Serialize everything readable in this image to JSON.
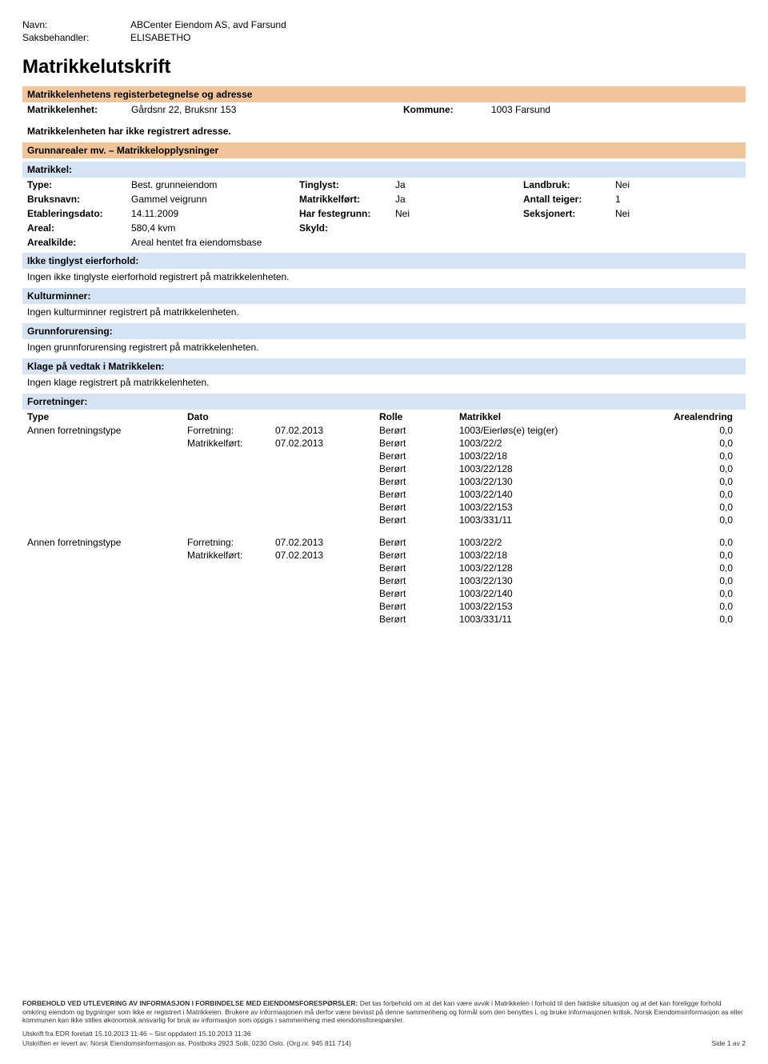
{
  "colors": {
    "orange_band": "#f2c49a",
    "blue_band": "#d4e4f4",
    "text": "#000000",
    "background": "#ffffff"
  },
  "header": {
    "navn_label": "Navn:",
    "navn_value": "ABCenter Eiendom AS, avd Farsund",
    "saks_label": "Saksbehandler:",
    "saks_value": "ELISABETHO"
  },
  "title": "Matrikkelutskrift",
  "reg": {
    "band": "Matrikkelenhetens registerbetegnelse og adresse",
    "enhet_label": "Matrikkelenhet:",
    "enhet_value": "Gårdsnr 22, Bruksnr 153",
    "kommune_label": "Kommune:",
    "kommune_value": "1003  Farsund",
    "no_address": "Matrikkelenheten har ikke registrert adresse."
  },
  "grunn": {
    "band": "Grunnarealer mv. – Matrikkelopplysninger",
    "matrikkel_label": "Matrikkel:",
    "rows": [
      {
        "a_lbl": "Type:",
        "a_val": "Best. grunneiendom",
        "b_lbl": "Tinglyst:",
        "b_val": "Ja",
        "c_lbl": "Landbruk:",
        "c_val": "Nei"
      },
      {
        "a_lbl": "Bruksnavn:",
        "a_val": "Gammel veigrunn",
        "b_lbl": "Matrikkelført:",
        "b_val": "Ja",
        "c_lbl": "Antall teiger:",
        "c_val": "1"
      },
      {
        "a_lbl": "Etableringsdato:",
        "a_val": "14.11.2009",
        "b_lbl": "Har festegrunn:",
        "b_val": "Nei",
        "c_lbl": "Seksjonert:",
        "c_val": "Nei"
      },
      {
        "a_lbl": "Areal:",
        "a_val": "580,4 kvm",
        "b_lbl": "Skyld:",
        "b_val": "",
        "c_lbl": "",
        "c_val": ""
      },
      {
        "a_lbl": "Arealkilde:",
        "a_val": "Areal hentet fra eiendomsbase",
        "b_lbl": "",
        "b_val": "",
        "c_lbl": "",
        "c_val": ""
      }
    ]
  },
  "sections": [
    {
      "title": "Ikke tinglyst eierforhold:",
      "body": "Ingen ikke tinglyste eierforhold registrert på matrikkelenheten."
    },
    {
      "title": "Kulturminner:",
      "body": "Ingen kulturminner registrert på matrikkelenheten."
    },
    {
      "title": "Grunnforurensing:",
      "body": "Ingen grunnforurensing registrert på matrikkelenheten."
    },
    {
      "title": "Klage på vedtak i Matrikkelen:",
      "body": "Ingen klage registrert på matrikkelenheten."
    }
  ],
  "forretninger": {
    "band": "Forretninger:",
    "headers": {
      "type": "Type",
      "dato": "Dato",
      "rolle": "Rolle",
      "matrikkel": "Matrikkel",
      "areal": "Arealendring"
    },
    "groups": [
      {
        "type": "Annen forretningstype",
        "dato_rows": [
          {
            "lbl": "Forretning:",
            "val": "07.02.2013"
          },
          {
            "lbl": "Matrikkelført:",
            "val": "07.02.2013"
          }
        ],
        "entries": [
          {
            "rolle": "Berørt",
            "matrikkel": "1003/Eierløs(e) teig(er)",
            "areal": "0,0"
          },
          {
            "rolle": "Berørt",
            "matrikkel": "1003/22/2",
            "areal": "0,0"
          },
          {
            "rolle": "Berørt",
            "matrikkel": "1003/22/18",
            "areal": "0,0"
          },
          {
            "rolle": "Berørt",
            "matrikkel": "1003/22/128",
            "areal": "0,0"
          },
          {
            "rolle": "Berørt",
            "matrikkel": "1003/22/130",
            "areal": "0,0"
          },
          {
            "rolle": "Berørt",
            "matrikkel": "1003/22/140",
            "areal": "0,0"
          },
          {
            "rolle": "Berørt",
            "matrikkel": "1003/22/153",
            "areal": "0,0"
          },
          {
            "rolle": "Berørt",
            "matrikkel": "1003/331/11",
            "areal": "0,0"
          }
        ]
      },
      {
        "type": "Annen forretningstype",
        "dato_rows": [
          {
            "lbl": "Forretning:",
            "val": "07.02.2013"
          },
          {
            "lbl": "Matrikkelført:",
            "val": "07.02.2013"
          }
        ],
        "entries": [
          {
            "rolle": "Berørt",
            "matrikkel": "1003/22/2",
            "areal": "0,0"
          },
          {
            "rolle": "Berørt",
            "matrikkel": "1003/22/18",
            "areal": "0,0"
          },
          {
            "rolle": "Berørt",
            "matrikkel": "1003/22/128",
            "areal": "0,0"
          },
          {
            "rolle": "Berørt",
            "matrikkel": "1003/22/130",
            "areal": "0,0"
          },
          {
            "rolle": "Berørt",
            "matrikkel": "1003/22/140",
            "areal": "0,0"
          },
          {
            "rolle": "Berørt",
            "matrikkel": "1003/22/153",
            "areal": "0,0"
          },
          {
            "rolle": "Berørt",
            "matrikkel": "1003/331/11",
            "areal": "0,0"
          }
        ]
      }
    ]
  },
  "footer": {
    "disclaimer_label": "FORBEHOLD VED UTLEVERING AV INFORMASJON I FORBINDELSE MED EIENDOMSFORESPØRSLER:",
    "disclaimer_body": "Det tas forbehold om at det kan være avvik i Matrikkelen i forhold til den faktiske situasjon og at det kan foreligge forhold omkring eiendom og bygninger som ikke er registrert i Matrikkelen. Brukere av informasjonen må derfor være bevisst på denne sammenheng og formål som den benyttes i, og bruke informasjonen kritisk. Norsk Eiendomsinformasjon as eller kommunen kan ikke stilles økonomisk ansvarlig for bruk av informasjon som oppgis i sammenheng med eiendomsforespørsler.",
    "meta1": "Utskrift fra EDR foretatt 15.10.2013 11:46 – Sist oppdatert 15.10.2013 11:36",
    "meta2": "Utskriften er levert av: Norsk Eiendomsinformasjon as, Postboks 2923 Solli, 0230 Oslo. (Org.nr. 945 811 714)",
    "page": "Side 1 av 2"
  }
}
